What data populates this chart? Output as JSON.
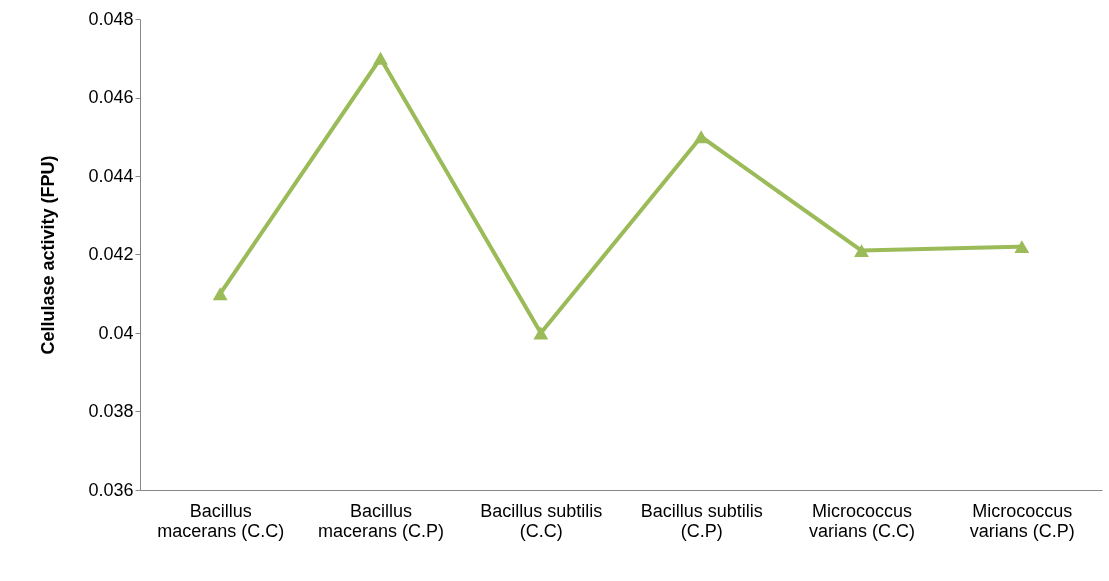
{
  "chart_data": {
    "type": "line",
    "ylabel": "Cellulase activity (FPU)",
    "categories": [
      "Bacillus\nmacerans (C.C)",
      "Bacillus\nmacerans (C.P)",
      "Bacillus subtilis\n(C.C)",
      "Bacillus subtilis\n(C.P)",
      "Micrococcus\nvarians (C.C)",
      "Micrococcus\nvarians (C.P)"
    ],
    "series": [
      {
        "color": "#9bbb59",
        "values": [
          0.041,
          0.047,
          0.04,
          0.045,
          0.0421,
          0.0422
        ]
      }
    ],
    "ylim": [
      0.036,
      0.048
    ],
    "yticks": [
      0.036,
      0.038,
      0.04,
      0.042,
      0.044,
      0.046,
      0.048
    ],
    "grid": false,
    "marker": "triangle",
    "line_style": "solid"
  }
}
